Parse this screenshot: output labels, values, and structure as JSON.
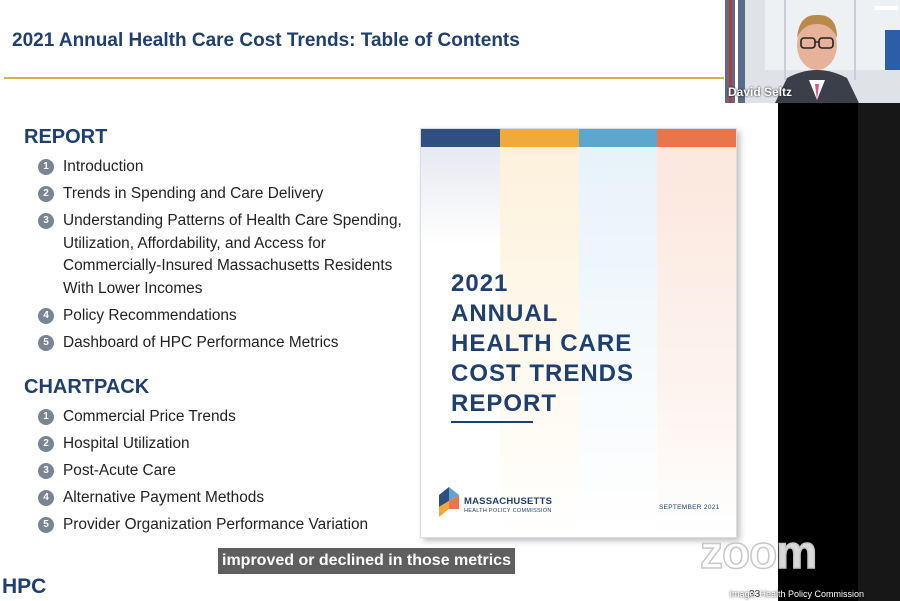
{
  "slide": {
    "title": "2021 Annual Health Care Cost Trends: Table of Contents",
    "report_heading": "REPORT",
    "report_items": [
      {
        "num": "1",
        "label": "Introduction"
      },
      {
        "num": "2",
        "label": "Trends in Spending and Care Delivery"
      },
      {
        "num": "3",
        "label": "Understanding Patterns of Health Care Spending, Utilization, Affordability, and Access for Commercially-Insured Massachusetts Residents With Lower Incomes"
      },
      {
        "num": "4",
        "label": "Policy Recommendations"
      },
      {
        "num": "5",
        "label": "Dashboard of HPC Performance Metrics"
      }
    ],
    "chartpack_heading": "CHARTPACK",
    "chartpack_items": [
      {
        "num": "1",
        "label": "Commercial Price Trends"
      },
      {
        "num": "2",
        "label": "Hospital Utilization"
      },
      {
        "num": "3",
        "label": "Post-Acute Care"
      },
      {
        "num": "4",
        "label": "Alternative Payment Methods"
      },
      {
        "num": "5",
        "label": "Provider Organization Performance Variation"
      }
    ],
    "footer_logo": "HPC",
    "page_number": "33"
  },
  "cover": {
    "title_lines": [
      "2021",
      "ANNUAL",
      "HEALTH CARE",
      "COST TRENDS",
      "REPORT"
    ],
    "logo_name": "MASSACHUSETTS",
    "logo_subtitle": "HEALTH POLICY COMMISSION",
    "date": "SEPTEMBER 2021",
    "stripe_colors": [
      "#2e4f7f",
      "#f2a93b",
      "#5ba7d0",
      "#e8764a"
    ]
  },
  "meeting": {
    "speaker_name": "David Seltz",
    "caption": "improved or declined in those metrics",
    "watermark": "zoom",
    "credit": "Image: Health Policy Commission"
  },
  "colors": {
    "navy": "#1f3f6e",
    "gold_rule": "#d4b24c",
    "number_badge": "#7a8594"
  }
}
